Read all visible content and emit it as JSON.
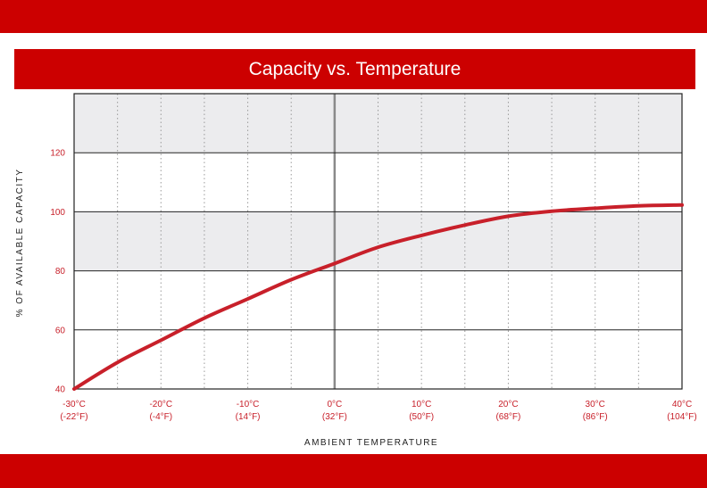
{
  "colors": {
    "brand_red": "#cc0000",
    "band_fill": "#ececee",
    "curve": "#c8202a",
    "tick_label": "#c8202a",
    "grid": "#222222",
    "dotted": "#9a9a9a",
    "zero_line": "#8a8a8a"
  },
  "header": {
    "title": "Capacity vs. Temperature"
  },
  "chart_data": {
    "type": "line",
    "title": "Capacity vs. Temperature",
    "xlabel": "AMBIENT TEMPERATURE",
    "ylabel": "% OF AVAILABLE CAPACITY",
    "xlim": [
      -30,
      40
    ],
    "ylim": [
      40,
      140
    ],
    "x_ticks": [
      {
        "value": -30,
        "c": "-30°C",
        "f": "(-22°F)"
      },
      {
        "value": -20,
        "c": "-20°C",
        "f": "(-4°F)"
      },
      {
        "value": -10,
        "c": "-10°C",
        "f": "(14°F)"
      },
      {
        "value": 0,
        "c": "0°C",
        "f": "(32°F)"
      },
      {
        "value": 10,
        "c": "10°C",
        "f": "(50°F)"
      },
      {
        "value": 20,
        "c": "20°C",
        "f": "(68°F)"
      },
      {
        "value": 30,
        "c": "30°C",
        "f": "(86°F)"
      },
      {
        "value": 40,
        "c": "40°C",
        "f": "(104°F)"
      }
    ],
    "y_ticks": [
      {
        "value": 40,
        "label": "40"
      },
      {
        "value": 60,
        "label": "60"
      },
      {
        "value": 80,
        "label": "80"
      },
      {
        "value": 100,
        "label": "100"
      },
      {
        "value": 120,
        "label": "120"
      }
    ],
    "shaded_bands": [
      [
        80,
        100
      ],
      [
        120,
        140
      ]
    ],
    "grid": true,
    "series": [
      {
        "x": [
          -30,
          -25,
          -20,
          -15,
          -10,
          -5,
          0,
          5,
          10,
          15,
          20,
          25,
          30,
          35,
          40
        ],
        "values": [
          40,
          49,
          56.5,
          64,
          70.5,
          77,
          82.5,
          88,
          92,
          95.5,
          98.5,
          100.2,
          101.2,
          102,
          102.3
        ]
      }
    ]
  }
}
